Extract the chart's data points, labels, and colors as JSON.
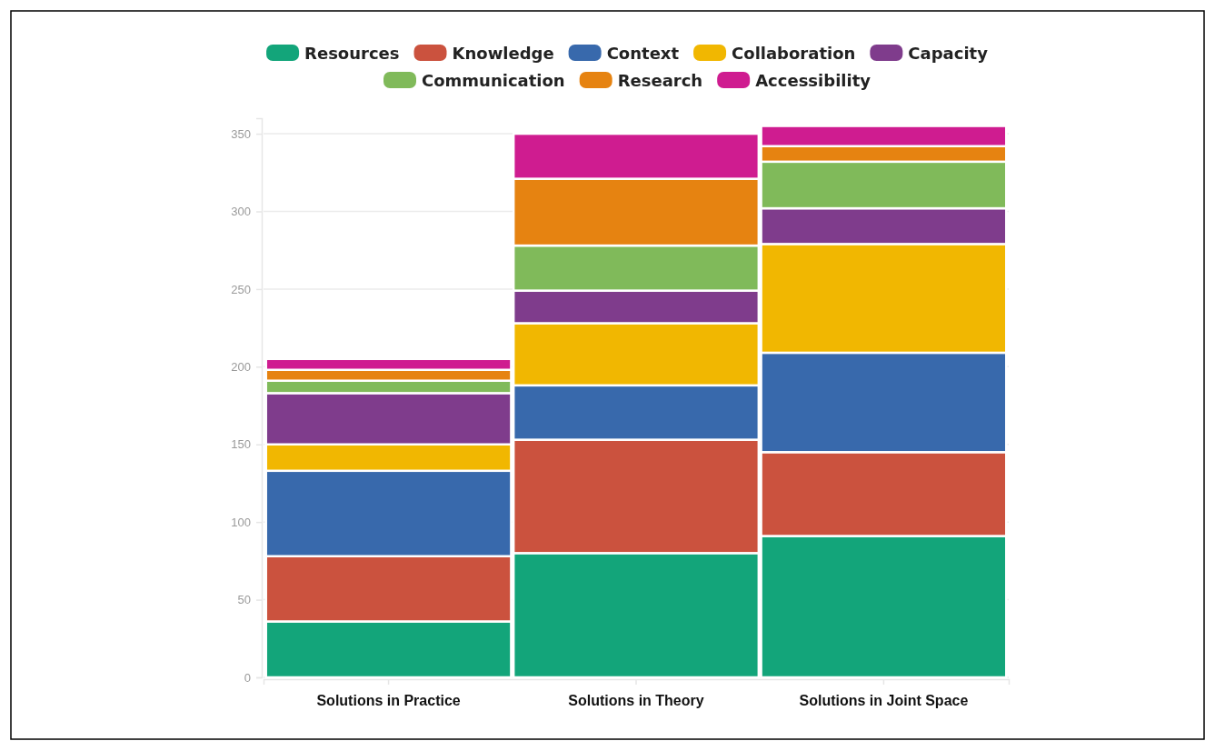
{
  "chart_data": {
    "type": "bar",
    "stacked": true,
    "categories": [
      "Solutions in Practice",
      "Solutions in Theory",
      "Solutions in Joint Space"
    ],
    "series": [
      {
        "name": "Resources",
        "color": "#13a57a",
        "values": [
          36,
          80,
          91
        ]
      },
      {
        "name": "Knowledge",
        "color": "#cb523e",
        "values": [
          42,
          73,
          54
        ]
      },
      {
        "name": "Context",
        "color": "#3869ac",
        "values": [
          55,
          35,
          64
        ]
      },
      {
        "name": "Collaboration",
        "color": "#f1b701",
        "values": [
          17,
          40,
          70
        ]
      },
      {
        "name": "Capacity",
        "color": "#7f3c8c",
        "values": [
          33,
          21,
          23
        ]
      },
      {
        "name": "Communication",
        "color": "#80ba5a",
        "values": [
          8,
          29,
          30
        ]
      },
      {
        "name": "Research",
        "color": "#e68311",
        "values": [
          7,
          43,
          10
        ]
      },
      {
        "name": "Accessibility",
        "color": "#cf1c90",
        "values": [
          7,
          29,
          13
        ]
      }
    ],
    "ylim": [
      0,
      360
    ],
    "yticks": [
      0,
      50,
      100,
      150,
      200,
      250,
      300,
      350
    ],
    "grid": "y",
    "legend": "top"
  }
}
